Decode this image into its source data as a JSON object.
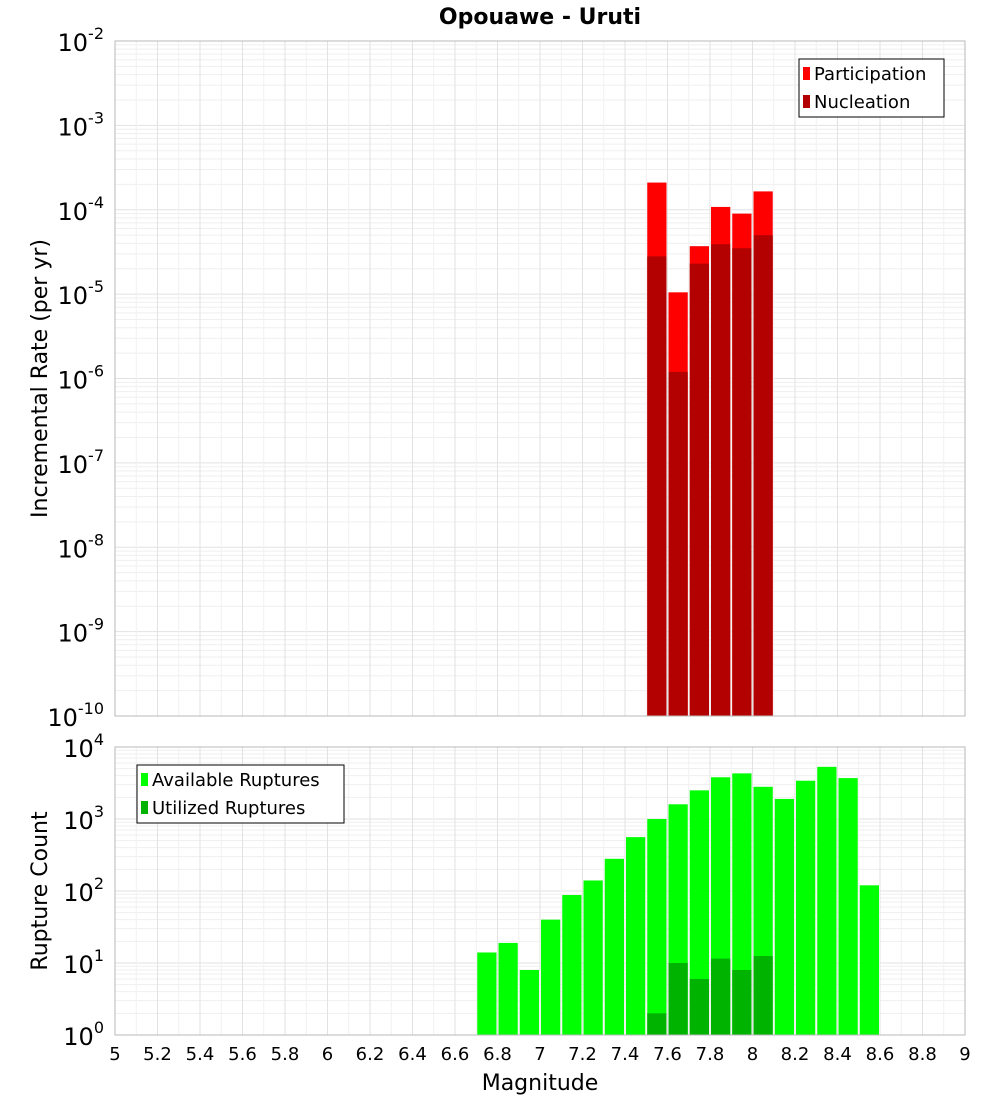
{
  "chart_data": [
    {
      "type": "bar",
      "title": "Opouawe - Uruti",
      "ylabel": "Incremental Rate (per yr)",
      "xlabel": "",
      "yscale": "log",
      "ylim": [
        1e-10,
        0.01
      ],
      "xlim": [
        5,
        9
      ],
      "bin_width": 0.1,
      "grid": true,
      "legend_position": "top-right",
      "series": [
        {
          "name": "Participation",
          "color": "#ff0000",
          "points": [
            [
              7.55,
              0.00021
            ],
            [
              7.65,
              1.05e-05
            ],
            [
              7.75,
              3.7e-05
            ],
            [
              7.85,
              0.000108
            ],
            [
              7.95,
              9e-05
            ],
            [
              8.05,
              0.000165
            ]
          ]
        },
        {
          "name": "Nucleation",
          "color": "#b30000",
          "points": [
            [
              7.55,
              2.8e-05
            ],
            [
              7.65,
              1.2e-06
            ],
            [
              7.75,
              2.3e-05
            ],
            [
              7.85,
              3.9e-05
            ],
            [
              7.95,
              3.5e-05
            ],
            [
              8.05,
              5e-05
            ]
          ]
        }
      ]
    },
    {
      "type": "bar",
      "title": "",
      "ylabel": "Rupture Count",
      "xlabel": "Magnitude",
      "yscale": "log",
      "ylim": [
        1,
        10000
      ],
      "xlim": [
        5,
        9
      ],
      "bin_width": 0.1,
      "grid": true,
      "legend_position": "top-left",
      "x_ticks": [
        "5",
        "5.2",
        "5.4",
        "5.6",
        "5.8",
        "6",
        "6.2",
        "6.4",
        "6.6",
        "6.8",
        "7",
        "7.2",
        "7.4",
        "7.6",
        "7.8",
        "8",
        "8.2",
        "8.4",
        "8.6",
        "8.8",
        "9"
      ],
      "series": [
        {
          "name": "Available Ruptures",
          "color": "#00ff00",
          "points": [
            [
              6.75,
              14
            ],
            [
              6.85,
              19
            ],
            [
              6.95,
              8
            ],
            [
              7.05,
              40
            ],
            [
              7.15,
              88
            ],
            [
              7.25,
              140
            ],
            [
              7.35,
              280
            ],
            [
              7.45,
              560
            ],
            [
              7.55,
              1000
            ],
            [
              7.65,
              1600
            ],
            [
              7.75,
              2500
            ],
            [
              7.85,
              3800
            ],
            [
              7.95,
              4300
            ],
            [
              8.05,
              2800
            ],
            [
              8.15,
              1900
            ],
            [
              8.25,
              3400
            ],
            [
              8.35,
              5300
            ],
            [
              8.45,
              3700
            ],
            [
              8.55,
              120
            ]
          ]
        },
        {
          "name": "Utilized Ruptures",
          "color": "#00b300",
          "points": [
            [
              7.55,
              2
            ],
            [
              7.65,
              10
            ],
            [
              7.75,
              6
            ],
            [
              7.85,
              11.5
            ],
            [
              7.95,
              8
            ],
            [
              8.05,
              12.5
            ]
          ]
        }
      ]
    }
  ]
}
